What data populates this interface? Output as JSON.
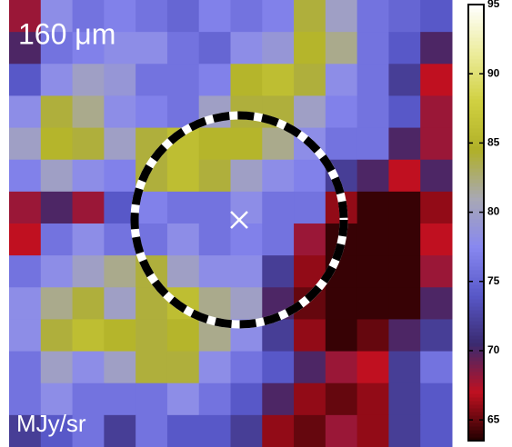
{
  "chart_data": {
    "type": "heatmap",
    "title": "160 μm",
    "colorbar_label": "MJy/sr",
    "values": [
      [
        68,
        78,
        76,
        77,
        76,
        75,
        77,
        76,
        77,
        84,
        80,
        76,
        75,
        74
      ],
      [
        70,
        76,
        77,
        78,
        78,
        76,
        75,
        78,
        79,
        85,
        82,
        76,
        74,
        70
      ],
      [
        74,
        78,
        80,
        79,
        76,
        76,
        77,
        85,
        86,
        84,
        78,
        76,
        72,
        67
      ],
      [
        78,
        84,
        82,
        78,
        77,
        76,
        80,
        84,
        84,
        80,
        77,
        76,
        74,
        68
      ],
      [
        80,
        85,
        84,
        80,
        84,
        86,
        85,
        85,
        82,
        78,
        76,
        76,
        70,
        68
      ],
      [
        77,
        80,
        78,
        77,
        84,
        86,
        84,
        80,
        78,
        77,
        72,
        70,
        67,
        70
      ],
      [
        68,
        70,
        68,
        74,
        77,
        76,
        76,
        78,
        76,
        76,
        66,
        64,
        64,
        66
      ],
      [
        67,
        76,
        78,
        76,
        76,
        78,
        76,
        77,
        76,
        68,
        64,
        64,
        64,
        67
      ],
      [
        76,
        78,
        80,
        82,
        84,
        80,
        78,
        78,
        72,
        66,
        64,
        64,
        64,
        68
      ],
      [
        78,
        82,
        84,
        80,
        84,
        86,
        82,
        80,
        70,
        65,
        64,
        64,
        64,
        70
      ],
      [
        78,
        84,
        86,
        85,
        84,
        85,
        82,
        78,
        72,
        66,
        64,
        65,
        70,
        72
      ],
      [
        76,
        80,
        78,
        80,
        84,
        84,
        78,
        76,
        74,
        70,
        68,
        67,
        72,
        76
      ],
      [
        76,
        78,
        76,
        76,
        76,
        78,
        76,
        74,
        70,
        66,
        65,
        66,
        72,
        74
      ],
      [
        72,
        74,
        76,
        72,
        76,
        74,
        74,
        72,
        66,
        65,
        68,
        66,
        72,
        74
      ]
    ],
    "colormap": [
      "#200000",
      "#c01020",
      "#3a2a70",
      "#5858c8",
      "#8888f0",
      "#a8a8b4",
      "#b0b028",
      "#d0d040",
      "#ecec9c",
      "#ffffff"
    ],
    "ylim": [
      63.5,
      95
    ],
    "yticks": [
      65,
      70,
      75,
      80,
      85,
      90,
      95
    ]
  }
}
